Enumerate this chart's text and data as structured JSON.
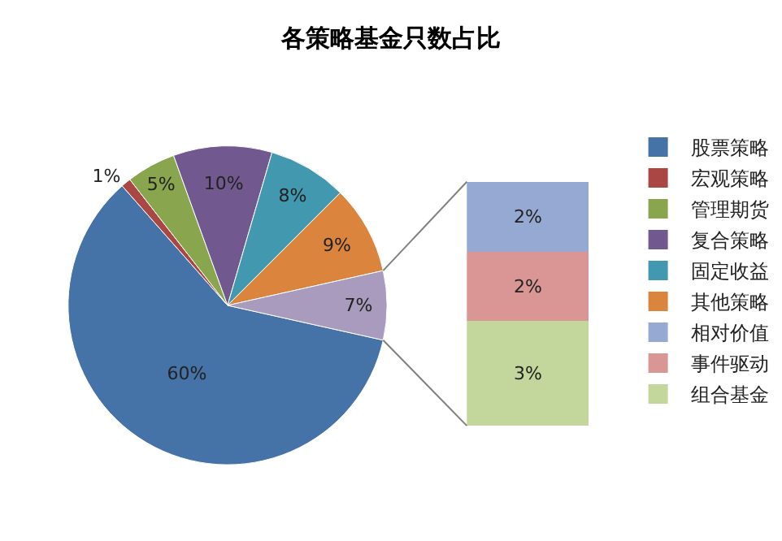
{
  "chart_data": [
    {
      "type": "pie",
      "title": "各策略基金只数占比",
      "categories": [
        "股票策略",
        "宏观策略",
        "管理期货",
        "复合策略",
        "固定收益",
        "其他策略",
        null
      ],
      "values": [
        60,
        1,
        5,
        10,
        8,
        9,
        7
      ],
      "colors": [
        "#4572a7",
        "#aa4643",
        "#89a54e",
        "#71588f",
        "#4198af",
        "#db843d",
        "#a99bbd"
      ],
      "value_labels": [
        "60%",
        "1%",
        "5%",
        "10%",
        "8%",
        "9%",
        "7%"
      ],
      "legend": "right"
    },
    {
      "type": "bar",
      "stacked": true,
      "categories": [
        null
      ],
      "legend": "right",
      "series": [
        {
          "name": "组合基金",
          "color": "#c3d69b",
          "values": [
            3
          ],
          "value_labels": [
            "3%"
          ]
        },
        {
          "name": "事件驱动",
          "color": "#d99694",
          "values": [
            2
          ],
          "value_labels": [
            "2%"
          ]
        },
        {
          "name": "相对价值",
          "color": "#95a9d3",
          "values": [
            2
          ],
          "value_labels": [
            "2%"
          ]
        }
      ]
    }
  ]
}
